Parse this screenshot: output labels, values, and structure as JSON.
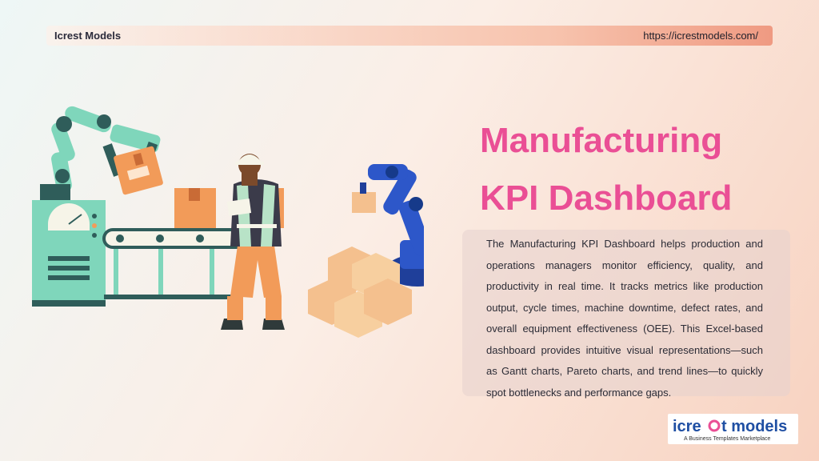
{
  "header": {
    "brand": "Icrest Models",
    "url": "https://icrestmodels.com/"
  },
  "hero": {
    "title_line1": "Manufacturing",
    "title_line2": "KPI Dashboard",
    "description": "The Manufacturing KPI Dashboard helps production and operations managers monitor efficiency, quality, and productivity in real time. It tracks metrics like production output, cycle times, machine downtime, defect rates, and overall equipment effectiveness (OEE). This Excel-based dashboard provides intuitive visual representations—such as Gantt charts, Pareto charts, and trend lines—to quickly spot bottlenecks and performance gaps."
  },
  "logo": {
    "text": "icrest models",
    "tagline": "A Business Templates Marketplace"
  },
  "colors": {
    "accent": "#ea4f95",
    "header_bar": "#f7c3ad",
    "logo_blue": "#1f4fa3"
  },
  "illustration": {
    "icons": [
      "robotic-arm-icon",
      "factory-machine-icon",
      "conveyor-belt-icon",
      "worker-icon",
      "blue-robot-arm-icon",
      "box-stack-icon"
    ]
  }
}
